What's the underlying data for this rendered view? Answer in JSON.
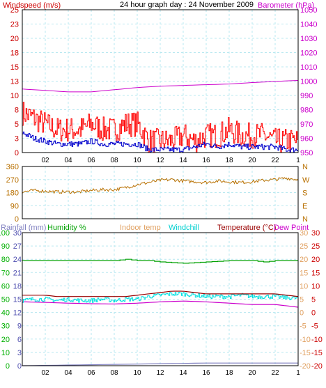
{
  "header": {
    "wind_label": "Windspeed (m/s)",
    "title": "24 hour graph day : 24 November 2009",
    "baro_label": "Barometer (hPa)"
  },
  "time_ticks": [
    "02",
    "04",
    "06",
    "08",
    "10",
    "12",
    "14",
    "16",
    "18",
    "20",
    "22",
    "1"
  ],
  "colors": {
    "frame": "#000000",
    "grid": "#b8e8f0",
    "wind_speed": "#ff0000",
    "wind_avg": "#0000cc",
    "barometer": "#cc00cc",
    "wind_dir": "#b87000",
    "humidity": "#00a000",
    "windchill": "#00e0e0",
    "temperature": "#990000",
    "dew_point": "#cc00cc",
    "rainfall": "#8080c0",
    "indoor_temp": "#e0a060",
    "axis_red": "#cc0000",
    "axis_green": "#00b000",
    "axis_purple": "#5050b0"
  },
  "chart_data": [
    {
      "type": "line",
      "id": "wind-baro",
      "left_axis": {
        "label": "Windspeed (m/s)",
        "ticks": [
          "25",
          "23",
          "20",
          "18",
          "15",
          "13",
          "10",
          "8",
          "5",
          "3",
          "0"
        ],
        "range": [
          0,
          25
        ]
      },
      "right_axis": {
        "label": "Barometer (hPa)",
        "ticks": [
          "1050",
          "1040",
          "1030",
          "1020",
          "1010",
          "1000",
          "990",
          "980",
          "970",
          "960",
          "950"
        ],
        "range": [
          950,
          1050
        ]
      },
      "x_ticks": [
        "02",
        "04",
        "06",
        "08",
        "10",
        "12",
        "14",
        "16",
        "18",
        "20",
        "22",
        "1"
      ],
      "grid": true,
      "series": [
        {
          "key": "barometer",
          "axis": "right",
          "x": [
            0,
            2,
            4,
            6,
            8,
            10,
            12,
            14,
            16,
            18,
            20,
            22,
            24
          ],
          "values": [
            994.5,
            993.5,
            992.5,
            992.5,
            994,
            995.5,
            996.5,
            997,
            997.5,
            998,
            999,
            999.8,
            1000.5
          ]
        },
        {
          "key": "wind_avg",
          "axis": "left",
          "x": [
            0,
            1,
            2,
            3,
            4,
            5,
            6,
            7,
            8,
            9,
            10,
            11,
            12,
            13,
            14,
            15,
            16,
            17,
            18,
            19,
            20,
            21,
            22,
            23,
            24
          ],
          "values": [
            3.5,
            2.5,
            2,
            1.5,
            1.5,
            1.5,
            2,
            1.5,
            1.5,
            1.5,
            1.5,
            0.5,
            0.5,
            0.5,
            0.5,
            1,
            1.5,
            1,
            1.5,
            1,
            1,
            1,
            1,
            0.5,
            0.5
          ]
        },
        {
          "key": "wind_speed",
          "axis": "left",
          "x": [
            0,
            1,
            2,
            3,
            4,
            5,
            6,
            7,
            8,
            9,
            10,
            11,
            12,
            13,
            14,
            15,
            16,
            17,
            18,
            19,
            20,
            21,
            22,
            23,
            24
          ],
          "values": [
            7,
            6,
            5,
            4,
            4,
            4,
            5,
            4,
            4,
            5,
            5,
            2,
            2,
            2,
            3,
            2,
            3,
            3,
            4,
            3,
            3,
            3,
            2,
            2,
            2
          ]
        }
      ]
    },
    {
      "type": "line",
      "id": "wind-direction",
      "left_axis": {
        "ticks": [
          "360",
          "270",
          "180",
          "90",
          "0"
        ],
        "range": [
          0,
          360
        ]
      },
      "right_axis": {
        "ticks": [
          "N",
          "W",
          "S",
          "E",
          "N"
        ]
      },
      "grid": true,
      "series": [
        {
          "key": "wind_dir",
          "axis": "left",
          "x": [
            0,
            1,
            2,
            3,
            4,
            5,
            6,
            7,
            8,
            9,
            10,
            11,
            12,
            13,
            14,
            15,
            16,
            17,
            18,
            19,
            20,
            21,
            22,
            23,
            24
          ],
          "values": [
            185,
            195,
            190,
            185,
            185,
            185,
            195,
            200,
            200,
            215,
            235,
            250,
            265,
            270,
            260,
            255,
            250,
            260,
            255,
            250,
            255,
            265,
            270,
            280,
            270
          ]
        }
      ]
    },
    {
      "type": "line",
      "id": "temp-humidity",
      "header_labels": [
        "Rainfall (mm)",
        "Humidity %",
        "Indoor temp",
        "Windchill",
        "Temperature (°C)",
        "Dew Point"
      ],
      "left_axes": {
        "humidity": {
          "ticks": [
            "100",
            "90",
            "80",
            "70",
            "60",
            "50",
            "40",
            "30",
            "20",
            "10",
            "0"
          ],
          "range": [
            0,
            100
          ]
        },
        "rainfall": {
          "ticks": [
            "30",
            "27",
            "24",
            "21",
            "18",
            "15",
            "12",
            "9",
            "6",
            "3",
            "0"
          ],
          "range": [
            0,
            30
          ]
        }
      },
      "right_axes": {
        "temperature": {
          "ticks": [
            "30",
            "25",
            "20",
            "15",
            "10",
            "5",
            "0",
            "-5",
            "-10",
            "-15",
            "-20"
          ],
          "range": [
            -20,
            30
          ]
        },
        "ticks_inner": [
          "30",
          "25",
          "20",
          "15",
          "10",
          "5",
          "0",
          "-5",
          "-10",
          "-15",
          "-20"
        ]
      },
      "x_ticks": [
        "02",
        "04",
        "06",
        "08",
        "10",
        "12",
        "14",
        "16",
        "18",
        "20",
        "22",
        "1"
      ],
      "grid": true,
      "series": [
        {
          "key": "humidity",
          "axis": "humidity",
          "x": [
            0,
            6,
            8,
            9,
            10,
            11,
            12,
            14,
            16,
            18,
            20,
            21,
            22,
            24
          ],
          "values": [
            79,
            79,
            79,
            80,
            79,
            79,
            78,
            77,
            78,
            79,
            79,
            78,
            79,
            79
          ]
        },
        {
          "key": "rainfall",
          "axis": "rainfall",
          "x": [
            0,
            8,
            16,
            24
          ],
          "values": [
            0,
            0.3,
            0.6,
            0.6
          ]
        },
        {
          "key": "temperature",
          "axis": "temperature",
          "x": [
            0,
            1,
            2,
            3,
            4,
            5,
            6,
            7,
            8,
            9,
            10,
            11,
            12,
            13,
            14,
            15,
            16,
            17,
            18,
            19,
            20,
            21,
            22,
            23,
            24
          ],
          "values": [
            6.5,
            6.5,
            6.5,
            6,
            6,
            6,
            6,
            6,
            6,
            6,
            6.5,
            7,
            7.5,
            8,
            8,
            7.5,
            7,
            7,
            7,
            7,
            7,
            7,
            7,
            6.5,
            6
          ]
        },
        {
          "key": "windchill",
          "axis": "temperature",
          "x": [
            0,
            1,
            2,
            3,
            4,
            5,
            6,
            7,
            8,
            9,
            10,
            11,
            12,
            13,
            14,
            15,
            16,
            17,
            18,
            19,
            20,
            21,
            22,
            23,
            24
          ],
          "values": [
            4.5,
            5,
            5,
            4.5,
            5,
            4.5,
            4.5,
            5,
            4.5,
            5,
            5,
            6,
            6.5,
            7,
            7,
            6.5,
            6,
            6,
            6,
            6.5,
            6,
            6,
            6,
            5.5,
            5.5
          ]
        },
        {
          "key": "dew_point",
          "axis": "temperature",
          "x": [
            0,
            2,
            4,
            6,
            8,
            10,
            12,
            14,
            16,
            18,
            20,
            22,
            24
          ],
          "values": [
            4,
            3.8,
            3.5,
            3.3,
            3.2,
            3.5,
            4,
            4.3,
            4,
            3.5,
            3,
            3,
            2
          ]
        }
      ]
    }
  ]
}
